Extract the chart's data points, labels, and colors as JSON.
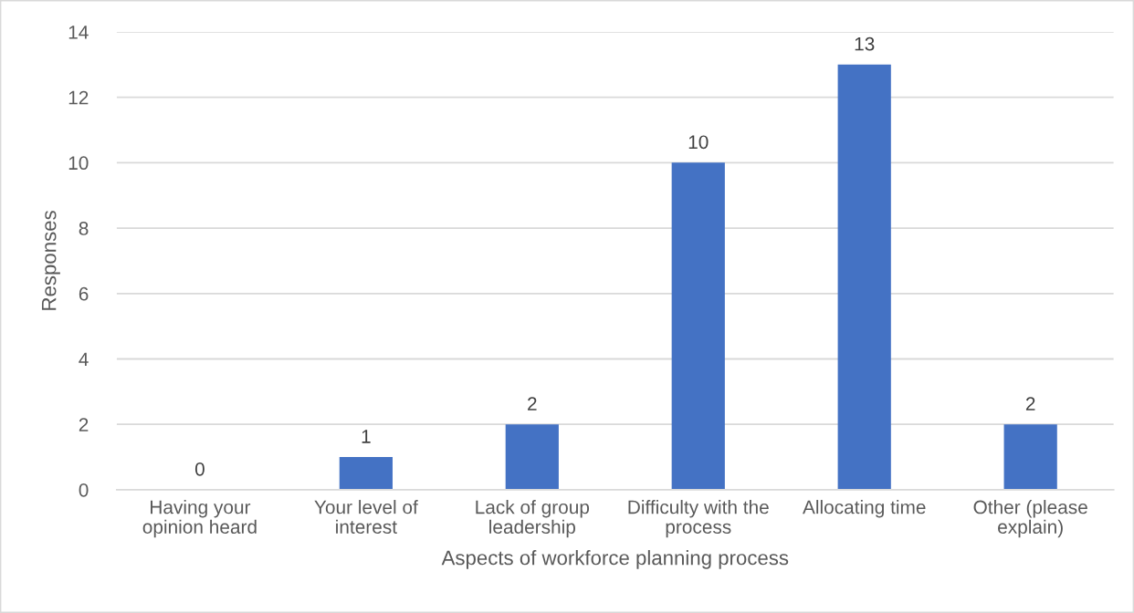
{
  "chart_data": {
    "type": "bar",
    "categories": [
      "Having your\nopinion heard",
      "Your level of\ninterest",
      "Lack of group\nleadership",
      "Difficulty with the\nprocess",
      "Allocating time",
      "Other (please\nexplain)"
    ],
    "values": [
      0,
      1,
      2,
      10,
      13,
      2
    ],
    "color": "#4472c4",
    "xlabel": "Aspects of workforce planning process",
    "ylabel": "Responses",
    "ylim": [
      0,
      14
    ],
    "yticks": [
      0,
      2,
      4,
      6,
      8,
      10,
      12,
      14
    ],
    "grid": "y",
    "data_labels": true
  }
}
